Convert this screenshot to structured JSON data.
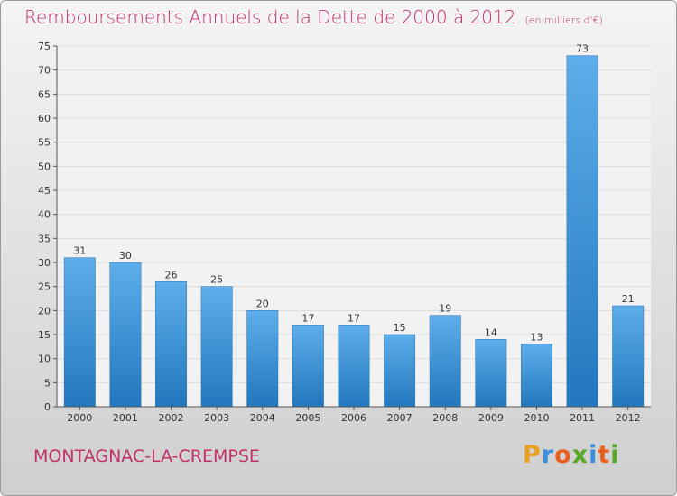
{
  "title": "Remboursements Annuels de la Dette de 2000 à 2012",
  "subtitle": "(en milliers d'€)",
  "commune": "MONTAGNAC-LA-CREMPSE",
  "brand": {
    "letters": [
      "P",
      "r",
      "o",
      "x",
      "i",
      "t",
      "i"
    ],
    "colors": [
      "#e8a020",
      "#3a8fd8",
      "#e85f20",
      "#5aa82a",
      "#3a8fd8",
      "#e85f20",
      "#5aa82a"
    ]
  },
  "colors": {
    "bar": "#3f93d6",
    "title": "#c0306a"
  },
  "chart_data": {
    "type": "bar",
    "categories": [
      "2000",
      "2001",
      "2002",
      "2003",
      "2004",
      "2005",
      "2006",
      "2007",
      "2008",
      "2009",
      "2010",
      "2011",
      "2012"
    ],
    "values": [
      31,
      30,
      26,
      25,
      20,
      17,
      17,
      15,
      19,
      14,
      13,
      73,
      21
    ],
    "title": "Remboursements Annuels de la Dette de 2000 à 2012",
    "subtitle": "(en milliers d'€)",
    "xlabel": "",
    "ylabel": "",
    "ylim": [
      0,
      75
    ],
    "yticks": [
      0,
      5,
      10,
      15,
      20,
      25,
      30,
      35,
      40,
      45,
      50,
      55,
      60,
      65,
      70,
      75
    ],
    "grid": true,
    "legend": "none"
  }
}
